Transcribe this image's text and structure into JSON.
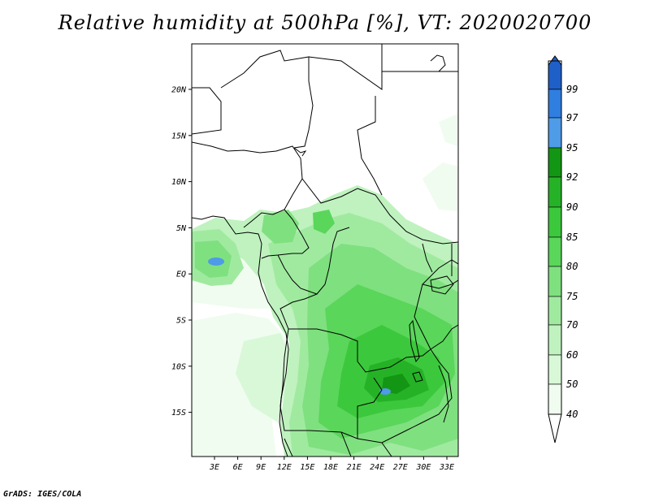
{
  "title": "Relative humidity at 500hPa [%], VT: 2020020700",
  "credit": "GrADS: IGES/COLA",
  "map": {
    "lat_labels": [
      "20N",
      "15N",
      "10N",
      "5N",
      "EQ",
      "5S",
      "10S",
      "15S"
    ],
    "lon_labels": [
      "3E",
      "6E",
      "9E",
      "12E",
      "15E",
      "18E",
      "21E",
      "24E",
      "27E",
      "30E",
      "33E"
    ]
  },
  "legend": {
    "levels": [
      "99",
      "97",
      "95",
      "92",
      "90",
      "85",
      "80",
      "75",
      "70",
      "60",
      "50",
      "40"
    ],
    "colors": {
      "40-50": "#f0fcf0",
      "50-60": "#d8f8d8",
      "60-70": "#bff2bf",
      "70-75": "#a0eaa0",
      "75-80": "#7fe07f",
      "80-85": "#5ad65a",
      "85-90": "#3cc83c",
      "90-92": "#26b226",
      "92-95": "#139613",
      "95-97": "#4e9be8",
      "97-99": "#2f7ee0",
      "99+": "#1f5fc8"
    }
  }
}
